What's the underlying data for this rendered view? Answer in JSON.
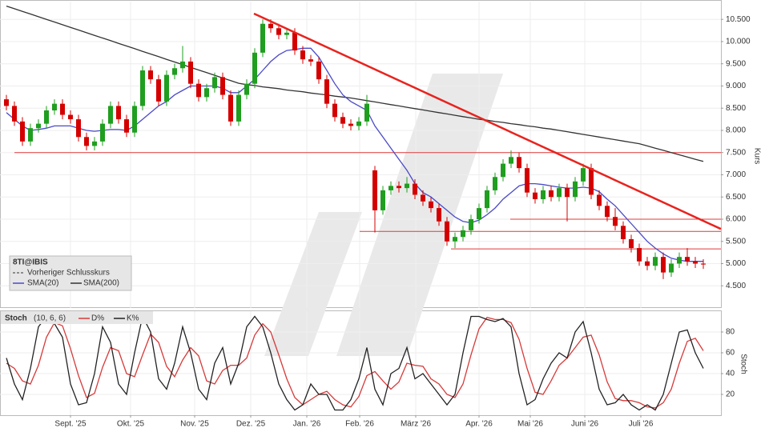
{
  "chart_data": [
    {
      "type": "candlestick",
      "title": "8TI@IBIS",
      "y_label": "Kurs",
      "previous_close_label": "Vorheriger Schlusskurs",
      "xlim": [
        -0.8,
        89.2
      ],
      "ylim": [
        4.0,
        10.9
      ],
      "yticks": [
        {
          "value": 4.5,
          "label": "4.500"
        },
        {
          "value": 5.0,
          "label": "5.000"
        },
        {
          "value": 5.5,
          "label": "5.500"
        },
        {
          "value": 6.0,
          "label": "6.000"
        },
        {
          "value": 6.5,
          "label": "6.500"
        },
        {
          "value": 7.0,
          "label": "7.000"
        },
        {
          "value": 7.5,
          "label": "7.500"
        },
        {
          "value": 8.0,
          "label": "8.000"
        },
        {
          "value": 8.5,
          "label": "8.500"
        },
        {
          "value": 9.0,
          "label": "9.000"
        },
        {
          "value": 9.5,
          "label": "9.500"
        },
        {
          "value": 10.0,
          "label": "10.000"
        },
        {
          "value": 10.5,
          "label": "10.500"
        }
      ],
      "grid": true,
      "up_color": "#1f9e1f",
      "down_color": "#d40000",
      "open": [
        8.7,
        8.55,
        8.2,
        7.75,
        8.05,
        8.15,
        8.45,
        8.6,
        8.35,
        8.25,
        7.85,
        7.65,
        7.75,
        8.15,
        8.55,
        8.25,
        7.95,
        8.55,
        9.35,
        9.15,
        8.65,
        9.25,
        9.4,
        9.55,
        9.05,
        8.75,
        8.95,
        9.2,
        8.8,
        8.2,
        8.8,
        9.05,
        9.75,
        10.4,
        10.3,
        10.15,
        10.2,
        9.8,
        9.6,
        9.55,
        9.15,
        8.6,
        8.3,
        8.15,
        8.1,
        8.2,
        7.1,
        6.2,
        6.65,
        6.75,
        6.7,
        6.8,
        6.55,
        6.4,
        6.25,
        5.95,
        5.5,
        5.6,
        5.75,
        6.0,
        6.25,
        6.65,
        6.95,
        7.25,
        7.4,
        7.15,
        6.6,
        6.45,
        6.65,
        6.5,
        6.7,
        6.5,
        6.85,
        7.15,
        6.55,
        6.3,
        6.05,
        5.85,
        5.55,
        5.35,
        5.05,
        4.95,
        5.15,
        4.8,
        5.0,
        5.15,
        5.05,
        5.0
      ],
      "high": [
        8.8,
        8.65,
        8.3,
        8.15,
        8.25,
        8.55,
        8.7,
        8.7,
        8.45,
        8.35,
        7.95,
        7.85,
        8.25,
        8.65,
        8.65,
        8.35,
        8.65,
        9.45,
        9.45,
        9.25,
        9.35,
        9.5,
        9.9,
        9.65,
        9.15,
        9.05,
        9.3,
        9.3,
        8.9,
        8.9,
        9.15,
        9.85,
        10.5,
        10.5,
        10.4,
        10.3,
        10.3,
        9.9,
        9.7,
        9.65,
        9.25,
        8.7,
        8.4,
        8.25,
        8.3,
        8.8,
        7.2,
        6.75,
        6.85,
        6.85,
        6.95,
        6.9,
        6.65,
        6.5,
        6.35,
        6.05,
        5.7,
        5.85,
        6.1,
        6.35,
        6.75,
        7.05,
        7.35,
        7.55,
        7.5,
        7.25,
        6.7,
        6.75,
        6.75,
        6.8,
        6.8,
        6.95,
        7.25,
        7.25,
        6.65,
        6.4,
        6.25,
        5.95,
        5.65,
        5.45,
        5.15,
        5.25,
        5.25,
        5.1,
        5.25,
        5.35,
        5.15,
        5.1
      ],
      "low": [
        8.45,
        8.1,
        7.65,
        7.65,
        7.95,
        8.05,
        8.35,
        8.25,
        8.15,
        7.75,
        7.55,
        7.55,
        7.65,
        8.05,
        8.15,
        7.85,
        7.85,
        8.45,
        9.05,
        8.55,
        8.55,
        9.15,
        9.3,
        8.95,
        8.65,
        8.65,
        8.85,
        8.7,
        8.1,
        8.1,
        8.7,
        8.95,
        9.65,
        10.2,
        10.05,
        10.05,
        9.7,
        9.5,
        9.45,
        9.05,
        8.5,
        8.2,
        8.05,
        8.0,
        8.0,
        8.1,
        5.7,
        6.1,
        6.55,
        6.6,
        6.6,
        6.45,
        6.3,
        6.15,
        5.85,
        5.4,
        5.35,
        5.5,
        5.65,
        5.9,
        6.15,
        6.55,
        6.85,
        7.15,
        7.05,
        6.5,
        6.35,
        6.35,
        6.4,
        6.4,
        5.95,
        6.4,
        6.75,
        6.45,
        6.2,
        5.95,
        5.75,
        5.45,
        5.25,
        4.95,
        4.85,
        4.85,
        4.65,
        4.7,
        4.9,
        4.95,
        4.9,
        4.88
      ],
      "close": [
        8.55,
        8.2,
        7.75,
        8.05,
        8.15,
        8.45,
        8.6,
        8.35,
        8.25,
        7.85,
        7.65,
        7.75,
        8.15,
        8.55,
        8.25,
        7.95,
        8.55,
        9.35,
        9.15,
        8.65,
        9.25,
        9.4,
        9.55,
        9.05,
        8.75,
        8.95,
        9.2,
        8.8,
        8.2,
        8.8,
        9.05,
        9.75,
        10.4,
        10.3,
        10.15,
        10.2,
        9.8,
        9.6,
        9.55,
        9.15,
        8.6,
        8.3,
        8.15,
        8.1,
        8.2,
        8.6,
        6.2,
        6.65,
        6.75,
        6.7,
        6.8,
        6.55,
        6.4,
        6.25,
        5.95,
        5.5,
        5.6,
        5.75,
        6.0,
        6.25,
        6.65,
        6.95,
        7.25,
        7.4,
        7.15,
        6.6,
        6.45,
        6.65,
        6.5,
        6.7,
        6.5,
        6.85,
        7.15,
        6.55,
        6.3,
        6.05,
        5.85,
        5.55,
        5.35,
        5.05,
        4.95,
        5.15,
        4.8,
        5.0,
        5.15,
        5.05,
        5.0,
        4.98
      ],
      "series": [
        {
          "name": "SMA(20)",
          "color": "#4a4ac8",
          "values": [
            8.4,
            8.25,
            8.1,
            8.0,
            8.02,
            8.05,
            8.1,
            8.1,
            8.1,
            8.05,
            8.0,
            7.98,
            8.0,
            8.02,
            8.02,
            8.0,
            8.1,
            8.25,
            8.4,
            8.55,
            8.65,
            8.8,
            8.9,
            9.0,
            9.0,
            9.0,
            9.0,
            8.95,
            8.85,
            8.85,
            9.0,
            9.15,
            9.35,
            9.55,
            9.7,
            9.8,
            9.82,
            9.85,
            9.85,
            9.65,
            9.35,
            9.05,
            8.8,
            8.65,
            8.55,
            8.45,
            8.1,
            7.85,
            7.6,
            7.35,
            7.1,
            6.8,
            6.6,
            6.5,
            6.35,
            6.2,
            6.05,
            5.95,
            5.92,
            5.98,
            6.1,
            6.25,
            6.45,
            6.6,
            6.75,
            6.8,
            6.8,
            6.78,
            6.75,
            6.72,
            6.7,
            6.7,
            6.72,
            6.7,
            6.62,
            6.45,
            6.3,
            6.1,
            5.9,
            5.7,
            5.5,
            5.35,
            5.22,
            5.12,
            5.08,
            5.05,
            5.05,
            5.05
          ]
        },
        {
          "name": "SMA(200)",
          "color": "#333333",
          "values": [
            10.8,
            10.74,
            10.68,
            10.62,
            10.56,
            10.5,
            10.44,
            10.38,
            10.32,
            10.26,
            10.2,
            10.14,
            10.08,
            10.02,
            9.96,
            9.9,
            9.84,
            9.78,
            9.72,
            9.66,
            9.6,
            9.54,
            9.48,
            9.42,
            9.36,
            9.3,
            9.24,
            9.18,
            9.12,
            9.06,
            9.03,
            9.01,
            8.98,
            8.96,
            8.94,
            8.91,
            8.89,
            8.87,
            8.84,
            8.82,
            8.8,
            8.77,
            8.75,
            8.73,
            8.7,
            8.67,
            8.64,
            8.61,
            8.58,
            8.55,
            8.52,
            8.49,
            8.46,
            8.43,
            8.4,
            8.37,
            8.34,
            8.31,
            8.28,
            8.25,
            8.23,
            8.2,
            8.18,
            8.15,
            8.13,
            8.1,
            8.08,
            8.05,
            8.03,
            8.0,
            7.97,
            7.94,
            7.91,
            7.88,
            7.85,
            7.82,
            7.79,
            7.76,
            7.73,
            7.7,
            7.65,
            7.6,
            7.55,
            7.5,
            7.45,
            7.4,
            7.35,
            7.3
          ]
        }
      ],
      "level_color": "#e03a3a",
      "levels": [
        {
          "value": 7.5,
          "from": 1
        },
        {
          "value": 6.0,
          "from": 62.9
        },
        {
          "value": 5.725,
          "from": 44.1
        },
        {
          "value": 5.33,
          "from": 55.5
        }
      ],
      "trendline": {
        "color": "#e8231e",
        "x": [
          30.9,
          89.2
        ],
        "y": [
          10.63,
          5.78
        ]
      }
    },
    {
      "type": "line",
      "title": "Stoch",
      "subtitle": "(10, 6, 6)",
      "y_label": "Stoch",
      "xlim": [
        -0.8,
        89.2
      ],
      "ylim": [
        0,
        100
      ],
      "yticks": [
        20,
        40,
        60,
        80
      ],
      "grid": true,
      "xticks": [
        {
          "value": 8.0,
          "label": "Sept. '25"
        },
        {
          "value": 15.5,
          "label": "Okt. '25"
        },
        {
          "value": 23.5,
          "label": "Nov. '25"
        },
        {
          "value": 30.5,
          "label": "Dez. '25"
        },
        {
          "value": 37.5,
          "label": "Jan. '26"
        },
        {
          "value": 44.1,
          "label": "Feb. '26"
        },
        {
          "value": 51.1,
          "label": "März '26"
        },
        {
          "value": 59.0,
          "label": "Apr. '26"
        },
        {
          "value": 65.4,
          "label": "Mai '26"
        },
        {
          "value": 72.2,
          "label": "Juni '26"
        },
        {
          "value": 79.2,
          "label": "Juli '26"
        }
      ],
      "series": [
        {
          "name": "D%",
          "color": "#d63a3a",
          "values": [
            50,
            45,
            33,
            30,
            48,
            75,
            89,
            86,
            64,
            38,
            17,
            21,
            46,
            65,
            62,
            40,
            37,
            58,
            78,
            70,
            47,
            37,
            53,
            65,
            57,
            33,
            30,
            43,
            48,
            48,
            55,
            77,
            88,
            80,
            58,
            35,
            17,
            10,
            15,
            20,
            23,
            15,
            10,
            8,
            18,
            38,
            42,
            33,
            25,
            32,
            50,
            48,
            47,
            35,
            30,
            20,
            17,
            30,
            58,
            83,
            94,
            92,
            92,
            89,
            73,
            45,
            22,
            20,
            33,
            48,
            55,
            65,
            75,
            77,
            58,
            32,
            16,
            14,
            14,
            12,
            8,
            7,
            12,
            25,
            50,
            71,
            74,
            62
          ]
        },
        {
          "name": "K%",
          "color": "#222222",
          "values": [
            55,
            30,
            15,
            45,
            85,
            95,
            88,
            75,
            30,
            10,
            12,
            40,
            85,
            70,
            30,
            20,
            60,
            95,
            80,
            35,
            25,
            50,
            85,
            60,
            25,
            15,
            50,
            65,
            30,
            50,
            85,
            95,
            85,
            60,
            30,
            15,
            5,
            10,
            30,
            20,
            20,
            5,
            5,
            15,
            35,
            65,
            25,
            10,
            40,
            45,
            65,
            35,
            40,
            30,
            20,
            10,
            20,
            60,
            95,
            95,
            92,
            90,
            93,
            85,
            40,
            10,
            15,
            35,
            50,
            60,
            55,
            80,
            90,
            60,
            25,
            10,
            12,
            20,
            10,
            5,
            10,
            5,
            20,
            50,
            80,
            82,
            60,
            45
          ]
        }
      ]
    }
  ]
}
